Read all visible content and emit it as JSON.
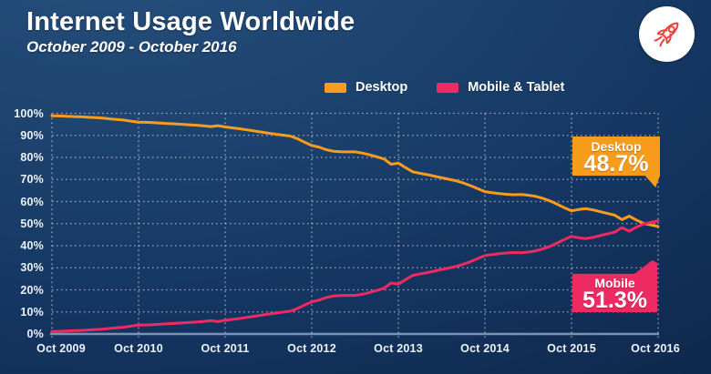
{
  "header": {
    "title": "Internet Usage Worldwide",
    "subtitle": "October 2009 - October 2016"
  },
  "legend": {
    "desktop_label": "Desktop",
    "mobile_label": "Mobile & Tablet"
  },
  "callouts": {
    "desktop": {
      "label": "Desktop",
      "value": "48.7%"
    },
    "mobile": {
      "label": "Mobile",
      "value": "51.3%"
    }
  },
  "icons": {
    "logo": "rocket-icon"
  },
  "colors": {
    "desktop": "#F89C1C",
    "mobile": "#EE2A62",
    "background": "#14315A",
    "grid": "rgba(255,255,255,0.55)",
    "axis_line": "#8FA3C2",
    "text": "#FFFFFF",
    "logo_red": "#E8453C"
  },
  "chart_data": {
    "type": "line",
    "title": "Internet Usage Worldwide",
    "subtitle": "October 2009 - October 2016",
    "x_unit": "month",
    "x_start": "Oct 2009",
    "x_end": "Oct 2016",
    "x_tick_labels": [
      "Oct 2009",
      "Oct 2010",
      "Oct 2011",
      "Oct 2012",
      "Oct 2013",
      "Oct 2014",
      "Oct 2015",
      "Oct 2016"
    ],
    "y_tick_labels": [
      "100%",
      "90%",
      "80%",
      "70%",
      "60%",
      "50%",
      "40%",
      "30%",
      "20%",
      "10%",
      "0%"
    ],
    "ylim": [
      0,
      100
    ],
    "grid": "dotted",
    "legend_position": "top",
    "series": [
      {
        "name": "Desktop",
        "color": "#F89C1C",
        "end_label": "48.7%",
        "values": [
          98.9,
          98.8,
          98.7,
          98.5,
          98.4,
          98.2,
          98.0,
          97.8,
          97.5,
          97.2,
          96.9,
          96.4,
          96.0,
          95.9,
          95.8,
          95.6,
          95.4,
          95.2,
          95.0,
          94.8,
          94.6,
          94.3,
          94.0,
          94.4,
          93.8,
          93.4,
          93.0,
          92.5,
          92.0,
          91.5,
          91.0,
          90.5,
          90.1,
          89.7,
          88.5,
          86.9,
          85.4,
          84.7,
          83.5,
          82.8,
          82.6,
          82.5,
          82.5,
          82.0,
          81.2,
          80.3,
          79.3,
          76.9,
          77.4,
          75.4,
          73.5,
          72.8,
          72.2,
          71.5,
          70.8,
          70.1,
          69.4,
          68.4,
          67.2,
          65.8,
          64.5,
          64.0,
          63.6,
          63.3,
          63.1,
          63.2,
          62.9,
          62.4,
          61.5,
          60.3,
          58.8,
          57.2,
          55.8,
          56.4,
          56.8,
          56.2,
          55.4,
          54.6,
          53.8,
          51.8,
          53.4,
          51.6,
          50.1,
          49.4,
          48.7
        ]
      },
      {
        "name": "Mobile & Tablet",
        "color": "#EE2A62",
        "end_label": "51.3%",
        "values": [
          1.1,
          1.2,
          1.3,
          1.5,
          1.6,
          1.8,
          2.0,
          2.2,
          2.5,
          2.8,
          3.1,
          3.6,
          4.0,
          4.1,
          4.2,
          4.4,
          4.6,
          4.8,
          5.0,
          5.2,
          5.4,
          5.7,
          6.0,
          5.6,
          6.2,
          6.6,
          7.0,
          7.5,
          8.0,
          8.5,
          9.0,
          9.5,
          9.9,
          10.3,
          11.5,
          13.1,
          14.6,
          15.3,
          16.5,
          17.2,
          17.4,
          17.5,
          17.5,
          18.0,
          18.8,
          19.7,
          20.7,
          23.1,
          22.6,
          24.6,
          26.5,
          27.2,
          27.8,
          28.5,
          29.2,
          29.9,
          30.6,
          31.6,
          32.8,
          34.2,
          35.5,
          36.0,
          36.4,
          36.7,
          36.9,
          36.8,
          37.1,
          37.6,
          38.5,
          39.7,
          41.2,
          42.8,
          44.2,
          43.6,
          43.2,
          43.8,
          44.6,
          45.4,
          46.2,
          48.2,
          46.6,
          48.4,
          49.9,
          50.6,
          51.3
        ]
      }
    ]
  }
}
